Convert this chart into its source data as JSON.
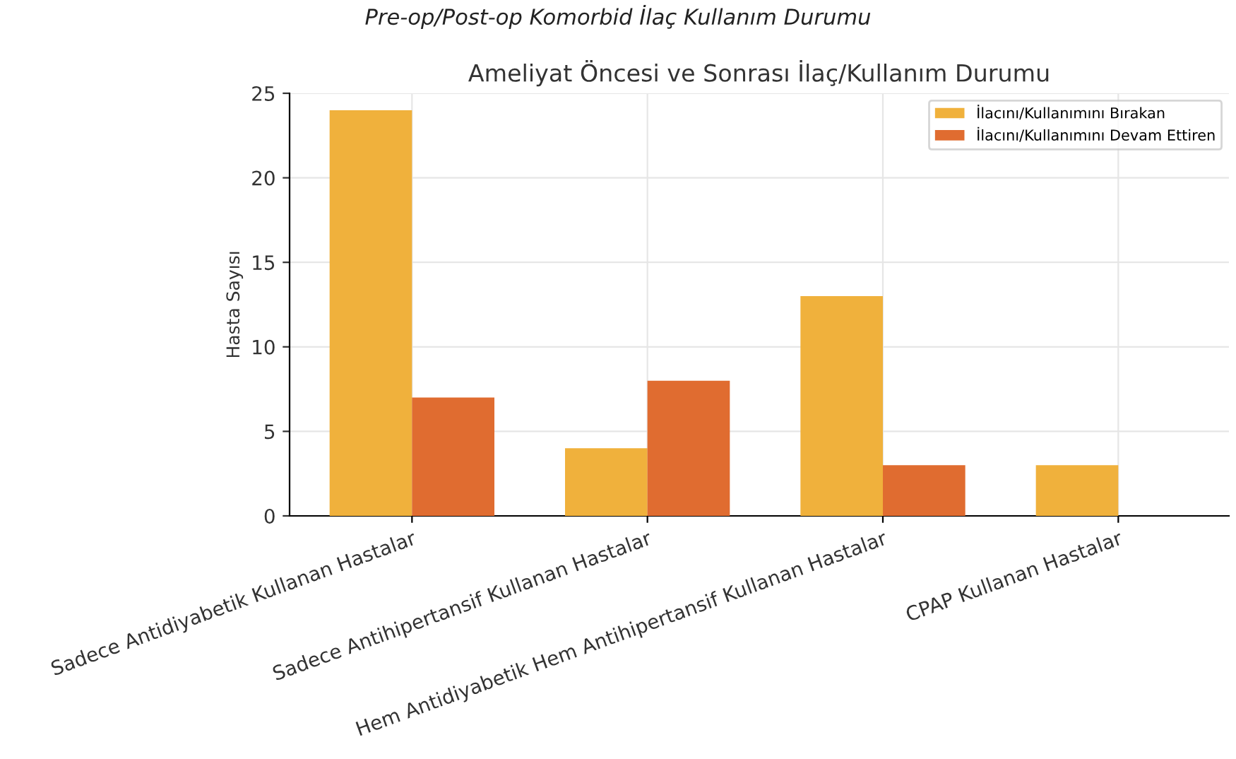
{
  "chart_data": {
    "type": "bar",
    "title": "Ameliyat Öncesi ve Sonrası İlaç/Kullanım Durumu",
    "ylabel": "Hasta Sayısı",
    "annotations": [
      "Pre-op/Post-op Komorbid İlaç Kullanım Durumu"
    ],
    "categories": [
      "Sadece Antidiyabetik Kullanan Hastalar",
      "Sadece Antihipertansif Kullanan Hastalar",
      "Hem Antidiyabetik Hem Antihipertansif Kullanan Hastalar",
      "CPAP Kullanan Hastalar"
    ],
    "series": [
      {
        "name": "İlacını/Kullanımını Bırakan",
        "color": "#f0b13c",
        "values": [
          24,
          4,
          13,
          3
        ]
      },
      {
        "name": "İlacını/Kullanımını Devam Ettiren",
        "color": "#e06c30",
        "values": [
          7,
          8,
          3,
          0
        ]
      }
    ],
    "ylim": [
      0,
      25
    ],
    "yticks": [
      0,
      5,
      10,
      15,
      20,
      25
    ],
    "grid": true,
    "legend": "top right"
  }
}
